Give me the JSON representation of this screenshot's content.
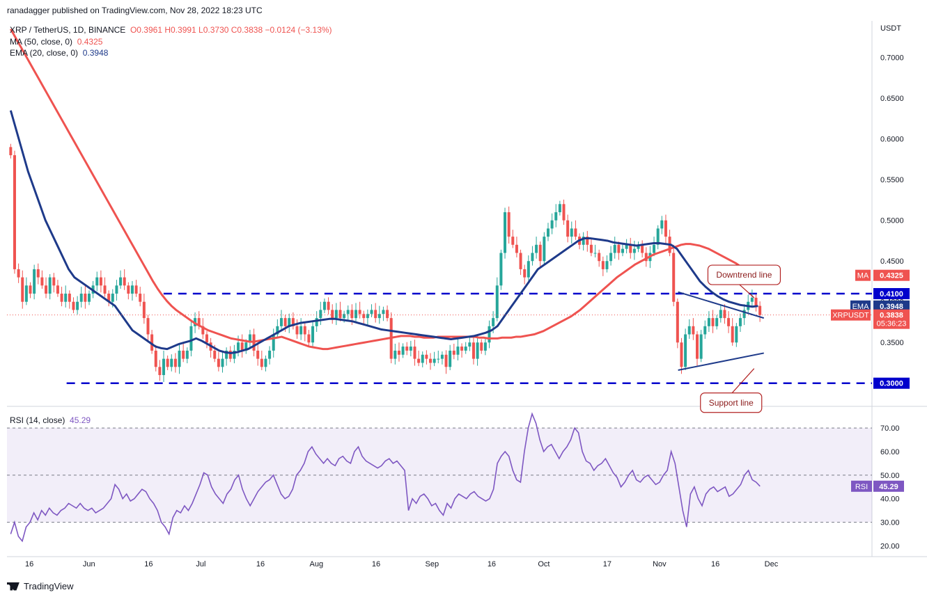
{
  "header": {
    "published": "ranadagger published on TradingView.com, Nov 28, 2022 18:23 UTC"
  },
  "legend": {
    "symbol": "XRP / TetherUS, 1D, BINANCE",
    "ohlc": "O0.3961  H0.3991  L0.3730  C0.3838  −0.0124 (−3.13%)",
    "ma_label": "MA (50, close, 0)",
    "ma_value": "0.4325",
    "ema_label": "EMA (20, close, 0)",
    "ema_value": "0.3948",
    "rsi_label": "RSI (14, close)",
    "rsi_value": "45.29"
  },
  "footer": {
    "brand": "TradingView"
  },
  "colors": {
    "up": "#26a69a",
    "down": "#ef5350",
    "ma": "#ef5350",
    "ema": "#1e3a8a",
    "rsi": "#7e57c2",
    "level": "#0000cc"
  },
  "chart_data": [
    {
      "type": "line",
      "panel": "price",
      "currency_label": "USDT",
      "ylim": [
        0.275,
        0.745
      ],
      "yticks": [
        "0.3500",
        "0.4000",
        "0.4500",
        "0.5000",
        "0.5500",
        "0.6000",
        "0.6500",
        "0.7000"
      ],
      "ytick_values": [
        0.35,
        0.4,
        0.45,
        0.5,
        0.55,
        0.6,
        0.65,
        0.7
      ],
      "xticks": [
        "16",
        "Jun",
        "16",
        "Jul",
        "16",
        "Aug",
        "16",
        "Sep",
        "16",
        "Oct",
        "17",
        "Nov",
        "16",
        "Dec"
      ],
      "xtick_days": [
        6,
        22,
        38,
        52,
        68,
        83,
        99,
        114,
        130,
        144,
        161,
        175,
        190,
        205
      ],
      "day_range": [
        0,
        232
      ],
      "close": [
        0.58,
        0.44,
        0.43,
        0.4,
        0.42,
        0.41,
        0.44,
        0.43,
        0.42,
        0.41,
        0.43,
        0.42,
        0.41,
        0.4,
        0.41,
        0.4,
        0.39,
        0.4,
        0.41,
        0.4,
        0.41,
        0.42,
        0.43,
        0.42,
        0.41,
        0.4,
        0.41,
        0.42,
        0.43,
        0.42,
        0.41,
        0.42,
        0.41,
        0.4,
        0.38,
        0.36,
        0.34,
        0.32,
        0.31,
        0.33,
        0.32,
        0.33,
        0.32,
        0.34,
        0.33,
        0.34,
        0.37,
        0.38,
        0.37,
        0.36,
        0.35,
        0.34,
        0.33,
        0.32,
        0.33,
        0.34,
        0.33,
        0.34,
        0.35,
        0.34,
        0.35,
        0.36,
        0.34,
        0.33,
        0.32,
        0.33,
        0.34,
        0.36,
        0.37,
        0.38,
        0.37,
        0.38,
        0.37,
        0.36,
        0.37,
        0.36,
        0.35,
        0.37,
        0.38,
        0.39,
        0.4,
        0.39,
        0.38,
        0.39,
        0.38,
        0.385,
        0.39,
        0.38,
        0.39,
        0.385,
        0.38,
        0.385,
        0.39,
        0.38,
        0.385,
        0.39,
        0.38,
        0.33,
        0.34,
        0.335,
        0.345,
        0.34,
        0.345,
        0.33,
        0.325,
        0.335,
        0.33,
        0.325,
        0.33,
        0.33,
        0.335,
        0.32,
        0.34,
        0.335,
        0.345,
        0.34,
        0.345,
        0.35,
        0.33,
        0.35,
        0.34,
        0.35,
        0.37,
        0.38,
        0.42,
        0.46,
        0.51,
        0.48,
        0.47,
        0.46,
        0.44,
        0.43,
        0.45,
        0.46,
        0.47,
        0.45,
        0.48,
        0.49,
        0.5,
        0.51,
        0.52,
        0.5,
        0.48,
        0.49,
        0.48,
        0.47,
        0.48,
        0.47,
        0.46,
        0.46,
        0.45,
        0.44,
        0.45,
        0.46,
        0.47,
        0.46,
        0.465,
        0.47,
        0.46,
        0.465,
        0.47,
        0.46,
        0.45,
        0.46,
        0.47,
        0.49,
        0.5,
        0.48,
        0.46,
        0.4,
        0.35,
        0.32,
        0.36,
        0.37,
        0.36,
        0.33,
        0.36,
        0.37,
        0.38,
        0.37,
        0.38,
        0.39,
        0.38,
        0.37,
        0.35,
        0.37,
        0.38,
        0.39,
        0.4,
        0.405,
        0.395,
        0.3838
      ],
      "ma50": [
        0.735,
        0.725,
        0.715,
        0.705,
        0.695,
        0.685,
        0.675,
        0.665,
        0.655,
        0.645,
        0.635,
        0.625,
        0.615,
        0.605,
        0.595,
        0.585,
        0.575,
        0.565,
        0.555,
        0.545,
        0.535,
        0.525,
        0.515,
        0.505,
        0.495,
        0.485,
        0.475,
        0.465,
        0.455,
        0.445,
        0.435,
        0.425,
        0.416,
        0.408,
        0.401,
        0.395,
        0.39,
        0.386,
        0.382,
        0.378,
        0.374,
        0.371,
        0.368,
        0.365,
        0.363,
        0.361,
        0.359,
        0.357,
        0.355,
        0.354,
        0.353,
        0.352,
        0.351,
        0.351,
        0.352,
        0.353,
        0.354,
        0.355,
        0.356,
        0.357,
        0.355,
        0.353,
        0.351,
        0.349,
        0.347,
        0.345,
        0.344,
        0.343,
        0.342,
        0.342,
        0.343,
        0.344,
        0.345,
        0.346,
        0.347,
        0.348,
        0.349,
        0.35,
        0.351,
        0.352,
        0.353,
        0.354,
        0.355,
        0.356,
        0.357,
        0.358,
        0.358,
        0.358,
        0.357,
        0.357,
        0.356,
        0.356,
        0.356,
        0.357,
        0.357,
        0.357,
        0.357,
        0.357,
        0.357,
        0.357,
        0.357,
        0.357,
        0.356,
        0.356,
        0.355,
        0.355,
        0.355,
        0.356,
        0.356,
        0.356,
        0.357,
        0.357,
        0.358,
        0.359,
        0.36,
        0.362,
        0.364,
        0.367,
        0.37,
        0.373,
        0.376,
        0.379,
        0.382,
        0.386,
        0.39,
        0.395,
        0.4,
        0.405,
        0.41,
        0.415,
        0.42,
        0.425,
        0.43,
        0.434,
        0.438,
        0.442,
        0.446,
        0.449,
        0.452,
        0.455,
        0.458,
        0.46,
        0.462,
        0.464,
        0.466,
        0.468,
        0.47,
        0.471,
        0.471,
        0.47,
        0.469,
        0.467,
        0.465,
        0.462,
        0.459,
        0.456,
        0.453,
        0.45,
        0.447,
        0.443,
        0.439,
        0.435,
        0.432,
        0.4325
      ],
      "ema20": [
        0.635,
        0.61,
        0.585,
        0.56,
        0.54,
        0.52,
        0.5,
        0.485,
        0.47,
        0.455,
        0.44,
        0.43,
        0.425,
        0.42,
        0.415,
        0.41,
        0.405,
        0.4,
        0.395,
        0.385,
        0.375,
        0.365,
        0.36,
        0.355,
        0.35,
        0.345,
        0.343,
        0.342,
        0.345,
        0.348,
        0.35,
        0.352,
        0.355,
        0.352,
        0.348,
        0.344,
        0.34,
        0.338,
        0.337,
        0.338,
        0.34,
        0.342,
        0.346,
        0.35,
        0.354,
        0.358,
        0.362,
        0.366,
        0.37,
        0.372,
        0.374,
        0.375,
        0.376,
        0.377,
        0.378,
        0.379,
        0.379,
        0.378,
        0.377,
        0.376,
        0.374,
        0.372,
        0.37,
        0.368,
        0.366,
        0.365,
        0.364,
        0.363,
        0.362,
        0.361,
        0.36,
        0.359,
        0.358,
        0.357,
        0.356,
        0.355,
        0.354,
        0.355,
        0.356,
        0.357,
        0.358,
        0.36,
        0.362,
        0.365,
        0.37,
        0.38,
        0.39,
        0.4,
        0.41,
        0.42,
        0.43,
        0.44,
        0.445,
        0.45,
        0.455,
        0.46,
        0.465,
        0.47,
        0.475,
        0.478,
        0.478,
        0.477,
        0.476,
        0.475,
        0.473,
        0.472,
        0.471,
        0.47,
        0.469,
        0.47,
        0.471,
        0.472,
        0.472,
        0.471,
        0.47,
        0.465,
        0.455,
        0.445,
        0.435,
        0.425,
        0.418,
        0.412,
        0.407,
        0.403,
        0.4,
        0.398,
        0.396,
        0.395,
        0.394,
        0.3948
      ],
      "levels": [
        0.41,
        0.3
      ],
      "level_labels": [
        "0.4100",
        "0.3000"
      ],
      "price_tags": [
        {
          "label": "MA",
          "value": "0.4325",
          "price": 0.4325,
          "color": "#ef5350"
        },
        {
          "label": "EMA",
          "value": "0.3948",
          "price": 0.3948,
          "color": "#1e3a8a"
        },
        {
          "label": "XRPUSDT",
          "value": "0.3838",
          "extra": "05:36:23",
          "price": 0.3838,
          "color": "#ef5350"
        }
      ],
      "annotations": [
        {
          "text": "Downtrend line",
          "start": [
            180,
            0.412
          ],
          "end": [
            203,
            0.38
          ]
        },
        {
          "text": "Support line",
          "start": [
            180,
            0.316
          ],
          "end": [
            203,
            0.337
          ]
        }
      ]
    },
    {
      "type": "line",
      "panel": "rsi",
      "name": "RSI",
      "ylim": [
        16,
        78
      ],
      "yticks": [
        "20.00",
        "30.00",
        "40.00",
        "50.00",
        "60.00",
        "70.00"
      ],
      "ytick_values": [
        20,
        30,
        40,
        50,
        60,
        70
      ],
      "bands": [
        30,
        50,
        70
      ],
      "values": [
        25,
        30,
        24,
        22,
        28,
        30,
        34,
        31,
        35,
        33,
        36,
        34,
        33,
        35,
        36,
        38,
        37,
        36,
        38,
        36,
        35,
        36,
        34,
        35,
        36,
        38,
        40,
        46,
        44,
        40,
        42,
        39,
        40,
        42,
        44,
        43,
        40,
        38,
        35,
        30,
        28,
        25,
        32,
        35,
        34,
        37,
        35,
        38,
        42,
        46,
        51,
        50,
        45,
        42,
        40,
        38,
        42,
        44,
        48,
        50,
        44,
        40,
        37,
        40,
        43,
        45,
        47,
        48,
        50,
        46,
        42,
        40,
        41,
        44,
        50,
        52,
        55,
        60,
        62,
        59,
        57,
        55,
        57,
        55,
        54,
        57,
        58,
        56,
        55,
        60,
        62,
        58,
        56,
        55,
        54,
        53,
        54,
        56,
        57,
        55,
        56,
        54,
        52,
        35,
        40,
        38,
        41,
        42,
        40,
        37,
        38,
        35,
        33,
        38,
        36,
        40,
        42,
        41,
        40,
        42,
        43,
        41,
        40,
        39,
        40,
        44,
        55,
        58,
        60,
        58,
        52,
        48,
        47,
        60,
        70,
        76,
        72,
        65,
        60,
        62,
        63,
        60,
        57,
        60,
        62,
        65,
        70,
        68,
        60,
        56,
        55,
        52,
        54,
        55,
        57,
        54,
        51,
        49,
        45,
        47,
        50,
        52,
        48,
        47,
        49,
        50,
        48,
        46,
        47,
        50,
        52,
        60,
        55,
        45,
        35,
        28,
        42,
        45,
        40,
        37,
        42,
        44,
        45,
        43,
        44,
        45,
        41,
        42,
        44,
        46,
        50,
        52,
        48,
        47,
        45.29
      ]
    }
  ]
}
